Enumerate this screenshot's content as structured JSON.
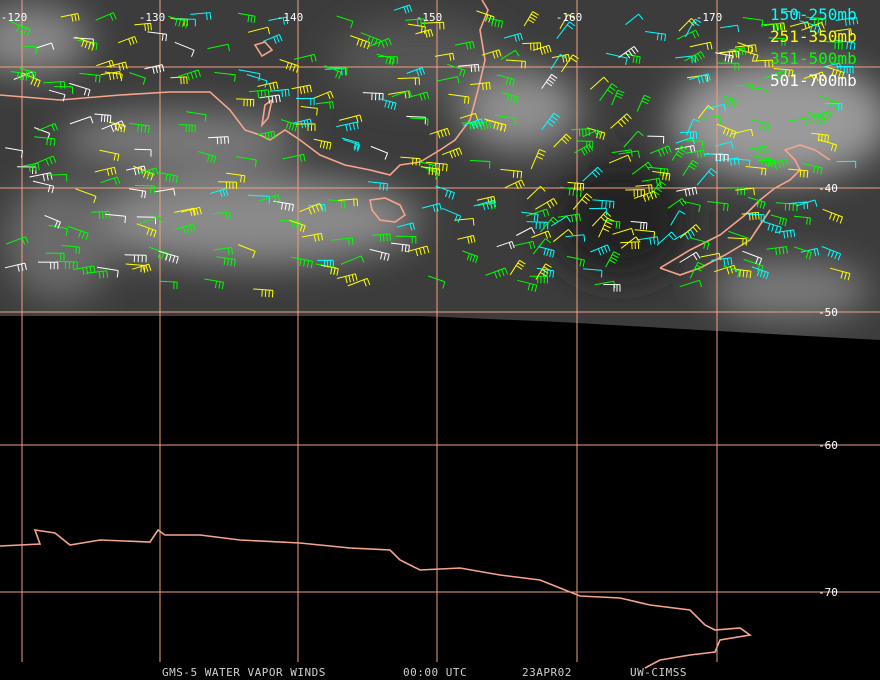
{
  "map": {
    "longitude_labels": [
      "-120",
      "-130",
      "-140",
      "-150",
      "-160",
      "-170"
    ],
    "latitude_labels": [
      "-40",
      "-50",
      "-60",
      "-70"
    ],
    "legend": [
      {
        "label": "150-250mb",
        "color": "#00ffff"
      },
      {
        "label": "251-350mb",
        "color": "#ffff00"
      },
      {
        "label": "351-500mb",
        "color": "#00ff00"
      },
      {
        "label": "501-700mb",
        "color": "#ffffff"
      }
    ],
    "footer": {
      "satellite": "GMS-5 WATER VAPOR WINDS",
      "time": "00:00 UTC",
      "date": "23APR02",
      "source": "UW-CIMSS"
    }
  }
}
